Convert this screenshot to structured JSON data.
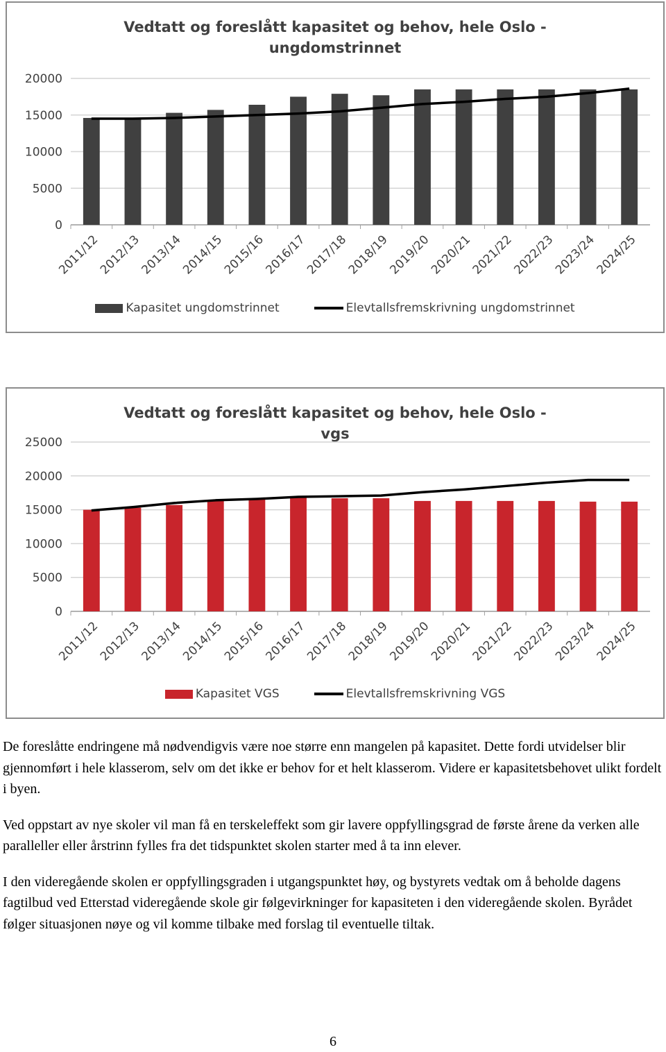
{
  "chart_data": [
    {
      "type": "bar",
      "title": "Vedtatt og foreslått kapasitet og behov, hele Oslo - ungdomstrinnet",
      "categories": [
        "2011/12",
        "2012/13",
        "2013/14",
        "2014/15",
        "2015/16",
        "2016/17",
        "2017/18",
        "2018/19",
        "2019/20",
        "2020/21",
        "2021/22",
        "2022/23",
        "2023/24",
        "2024/25"
      ],
      "series": [
        {
          "name": "Kapasitet ungdomstrinnet",
          "type": "bar",
          "color": "#404040",
          "values": [
            14600,
            14600,
            15300,
            15700,
            16400,
            17500,
            17900,
            17700,
            18500,
            18500,
            18500,
            18500,
            18500,
            18500
          ]
        },
        {
          "name": "Elevtallsfremskrivning ungdomstrinnet",
          "type": "line",
          "color": "#000000",
          "values": [
            14500,
            14500,
            14600,
            14800,
            15000,
            15200,
            15500,
            16000,
            16500,
            16800,
            17200,
            17500,
            18000,
            18600
          ]
        }
      ],
      "ylim": [
        0,
        20000
      ],
      "yticks": [
        0,
        5000,
        10000,
        15000,
        20000
      ],
      "grid": true
    },
    {
      "type": "bar",
      "title": "Vedtatt og foreslått kapasitet og behov, hele Oslo - vgs",
      "categories": [
        "2011/12",
        "2012/13",
        "2013/14",
        "2014/15",
        "2015/16",
        "2016/17",
        "2017/18",
        "2018/19",
        "2019/20",
        "2020/21",
        "2021/22",
        "2022/23",
        "2023/24",
        "2024/25"
      ],
      "series": [
        {
          "name": "Kapasitet VGS",
          "type": "bar",
          "color": "#c8252c",
          "values": [
            15000,
            15300,
            15700,
            16400,
            16700,
            16900,
            16700,
            16700,
            16300,
            16300,
            16300,
            16300,
            16200,
            16200
          ]
        },
        {
          "name": "Elevtallsfremskrivning VGS",
          "type": "line",
          "color": "#000000",
          "values": [
            14900,
            15400,
            16000,
            16400,
            16600,
            16900,
            17000,
            17100,
            17600,
            18000,
            18500,
            19000,
            19400,
            19400
          ]
        }
      ],
      "ylim": [
        0,
        25000
      ],
      "yticks": [
        0,
        5000,
        10000,
        15000,
        20000,
        25000
      ],
      "grid": true
    }
  ],
  "paragraphs": [
    "De foreslåtte endringene må nødvendigvis være noe større enn mangelen på kapasitet. Dette fordi utvidelser blir gjennomført i hele klasserom, selv om det ikke er behov for et helt klasserom. Videre er kapasitetsbehovet ulikt fordelt i byen.",
    "Ved oppstart av nye skoler vil man få en terskeleffekt som gir lavere oppfyllingsgrad de første årene da verken alle paralleller eller årstrinn fylles fra det tidspunktet skolen starter med å ta inn elever.",
    "I den videregående skolen er oppfyllingsgraden i utgangspunktet høy, og bystyrets vedtak om å beholde dagens fagtilbud ved Etterstad videregående skole gir følgevirkninger for kapasiteten i den videregående skolen. Byrådet følger situasjonen nøye og vil komme tilbake med forslag til eventuelle tiltak."
  ],
  "page_number": "6"
}
